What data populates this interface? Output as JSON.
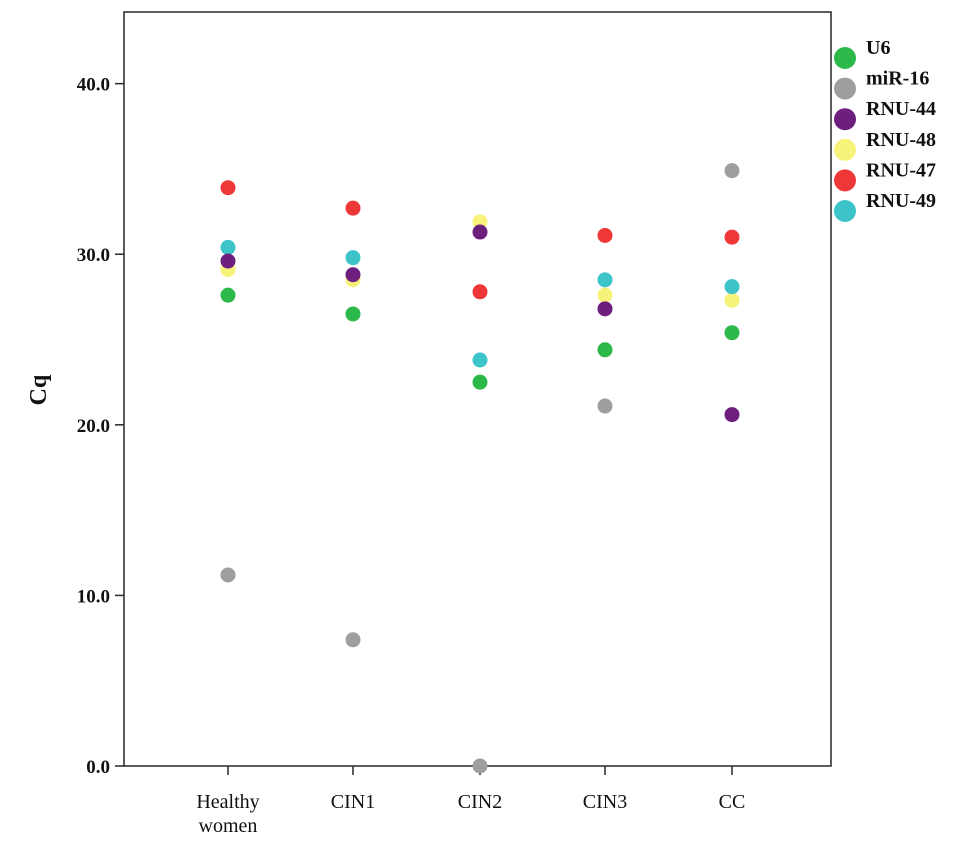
{
  "chart_data": {
    "type": "scatter",
    "title": "",
    "xlabel": "",
    "ylabel": "Cq",
    "ylim": [
      0,
      44.2
    ],
    "yticks": [
      "0.0",
      "10.0",
      "20.0",
      "30.0",
      "40.0"
    ],
    "grid": false,
    "legend_position": "top-right, outside plot",
    "categories": [
      [
        "Healthy",
        "women"
      ],
      [
        "CIN1"
      ],
      [
        "CIN2"
      ],
      [
        "CIN3"
      ],
      [
        "CC"
      ]
    ],
    "series": [
      {
        "name": "U6",
        "color": "#2db84a",
        "values": [
          27.6,
          26.5,
          22.5,
          24.4,
          25.4
        ]
      },
      {
        "name": "miR-16",
        "color": "#9e9e9e",
        "values": [
          11.2,
          7.4,
          0.0,
          21.1,
          34.9
        ]
      },
      {
        "name": "RNU-44",
        "color": "#6d1f7e",
        "values": [
          29.6,
          28.8,
          31.3,
          26.8,
          20.6
        ]
      },
      {
        "name": "RNU-48",
        "color": "#f7f27a",
        "values": [
          29.1,
          28.5,
          31.9,
          27.6,
          27.3
        ]
      },
      {
        "name": "RNU-47",
        "color": "#ee3838",
        "values": [
          33.9,
          32.7,
          27.8,
          31.1,
          31.0
        ]
      },
      {
        "name": "RNU-49",
        "color": "#3cc4c8",
        "values": [
          30.4,
          29.8,
          23.8,
          28.5,
          28.1
        ]
      }
    ],
    "draw_order": [
      "RNU-48",
      "RNU-49",
      "RNU-44",
      "RNU-47",
      "U6",
      "miR-16"
    ]
  }
}
